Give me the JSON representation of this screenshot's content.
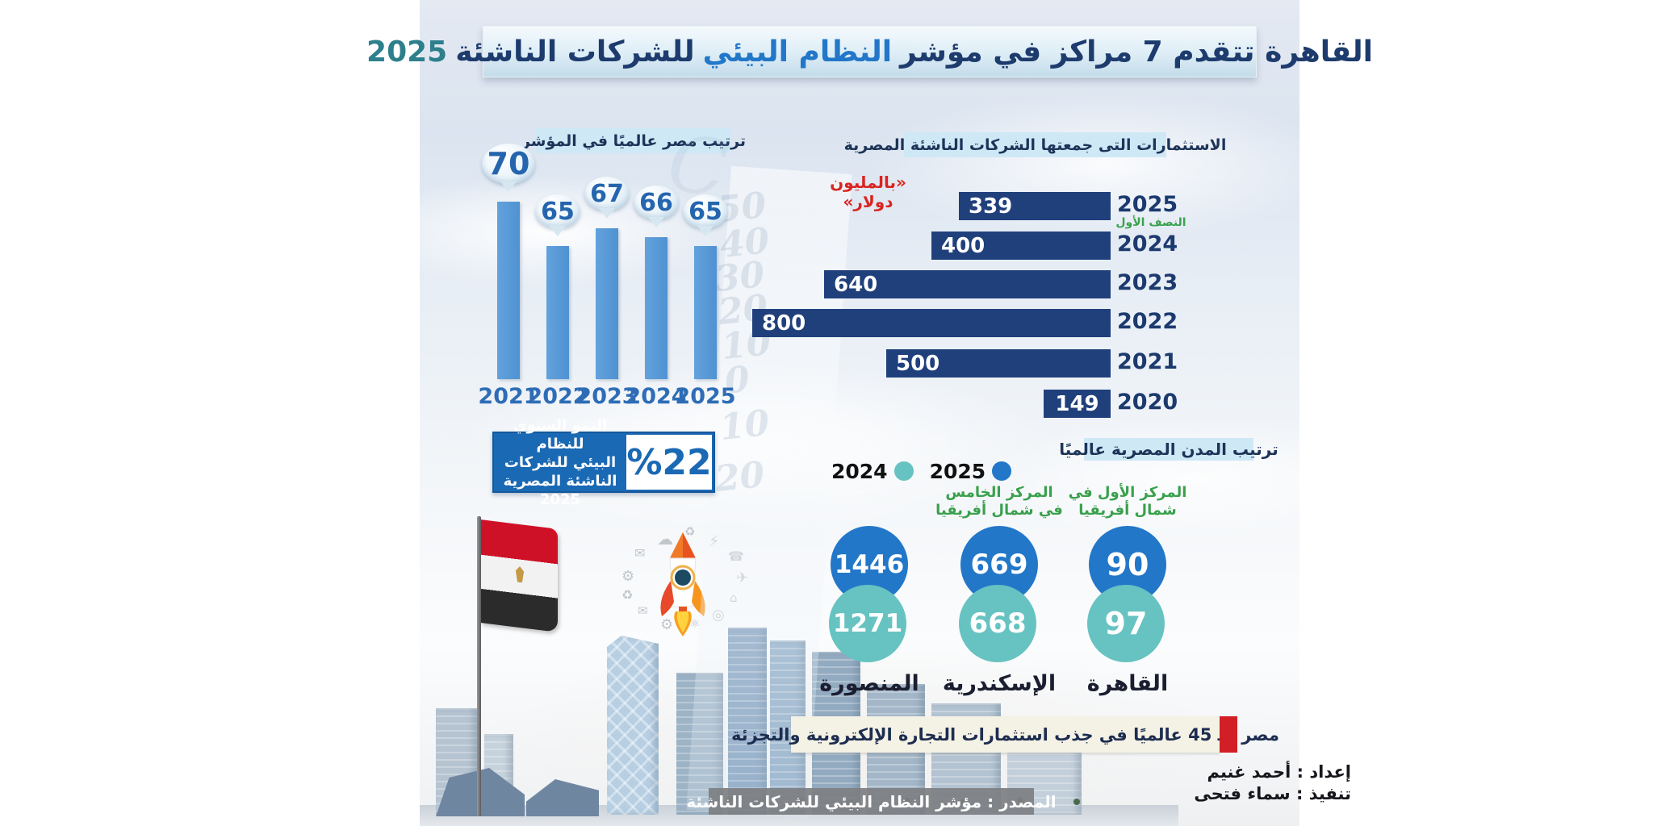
{
  "colors": {
    "navy_text": "#1d3b6d",
    "blue_accent": "#2277c8",
    "teal_text": "#2d7f8c",
    "rank_bar": "#4f92d2",
    "investment_bar": "#20407c",
    "circle_2025": "#2277c8",
    "circle_2024": "#66c3c1",
    "green_caption": "#3aa24d",
    "red_accent": "#d21f26",
    "header_bg": "#cfe8f6",
    "source_bar_bg": "#7d7f82",
    "growth_box_bg": "#1a69b4"
  },
  "title": {
    "part_1": "القاهرة تتقدم 7 مراكز في مؤشر",
    "part_2": "النظام البيئي",
    "part_3": "للشركات الناشئة",
    "part_4": "2025"
  },
  "chart_data": [
    {
      "id": "egypt_global_rank",
      "type": "bar",
      "title": "ترتيب مصر عالميًا في المؤشر",
      "categories": [
        "2021",
        "2022",
        "2023",
        "2024",
        "2025"
      ],
      "values": [
        70,
        65,
        67,
        66,
        65
      ],
      "bar_color": "#4f92d2",
      "legend_position": "none",
      "grid": false
    },
    {
      "id": "startup_investments",
      "type": "bar",
      "orientation": "horizontal",
      "title": "الاستثمارات التى جمعتها الشركات الناشئة المصرية",
      "unit": "«بالمليون دولار»",
      "categories": [
        "2025",
        "2024",
        "2023",
        "2022",
        "2021",
        "2020"
      ],
      "values": [
        339,
        400,
        640,
        800,
        500,
        149
      ],
      "annotations": {
        "2025": "النصف الأول"
      },
      "bar_color": "#20407c",
      "grid": false
    },
    {
      "id": "egyptian_cities_rank",
      "type": "bar",
      "title": "ترتيب المدن المصرية عالميًا",
      "categories": [
        "المنصورة",
        "الإسكندرية",
        "القاهرة"
      ],
      "series": [
        {
          "name": "2025",
          "color": "#2277c8",
          "values": [
            1446,
            669,
            90
          ]
        },
        {
          "name": "2024",
          "color": "#66c3c1",
          "values": [
            1271,
            668,
            97
          ]
        }
      ],
      "captions_line1": [
        "",
        "المركز الخامس",
        "المركز الأول في"
      ],
      "captions_line2": [
        "",
        "في شمال أفريقيا",
        "شمال أفريقيا"
      ],
      "legend_position": "top-left"
    }
  ],
  "growth_box": {
    "value": "%22",
    "line1": "النمو السنوي للنظام",
    "line2": "البيئي للشركات",
    "line3": "الناشئة المصرية 2025"
  },
  "banner": {
    "text": "مصر الـ 45 عالميًا في جذب استثمارات التجارة الإلكترونية والتجزئة"
  },
  "credits": {
    "line1": "إعداد : أحمد غنيم",
    "line2": "تنفيذ : سماء فتحى"
  },
  "source": {
    "text": "المصدر : مؤشر النظام البيئي للشركات الناشئة"
  },
  "decor": {
    "watermark": [
      "50",
      "40",
      "30",
      "20",
      "10",
      "0",
      "10",
      "20"
    ],
    "ghost_letter": "C",
    "icon_cloud": [
      "gear",
      "mail",
      "cloud",
      "recycle",
      "bolt",
      "phone",
      "plane",
      "home",
      "target",
      "atom",
      "gear",
      "mail",
      "recycle",
      "cloud"
    ]
  }
}
